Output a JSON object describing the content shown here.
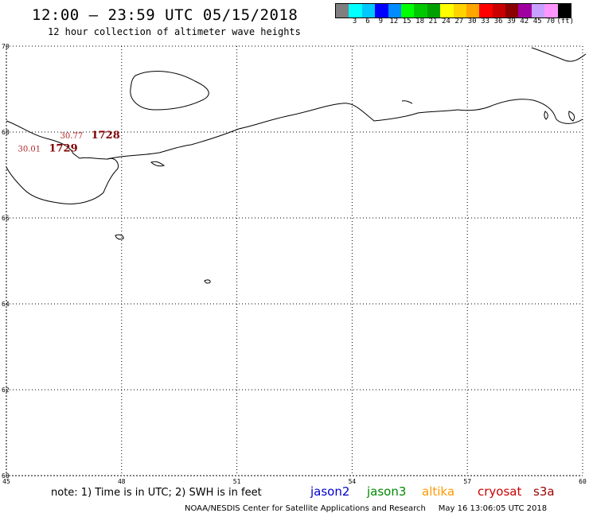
{
  "header": {
    "title": "12:00 – 23:59 UTC 05/15/2018",
    "subtitle": "12 hour collection of altimeter wave heights"
  },
  "legend": {
    "unit": "(ft)",
    "bins": [
      {
        "label": "",
        "color": "#7f7f7f"
      },
      {
        "label": "3",
        "color": "#00ffff"
      },
      {
        "label": "6",
        "color": "#00c8ff"
      },
      {
        "label": "9",
        "color": "#0000ff"
      },
      {
        "label": "12",
        "color": "#008cff"
      },
      {
        "label": "15",
        "color": "#00ff00"
      },
      {
        "label": "18",
        "color": "#00c800"
      },
      {
        "label": "21",
        "color": "#00a000"
      },
      {
        "label": "24",
        "color": "#ffff00"
      },
      {
        "label": "27",
        "color": "#ffd200"
      },
      {
        "label": "30",
        "color": "#ffa500"
      },
      {
        "label": "33",
        "color": "#ff0000"
      },
      {
        "label": "36",
        "color": "#c80000"
      },
      {
        "label": "39",
        "color": "#8b0000"
      },
      {
        "label": "42",
        "color": "#a000a0"
      },
      {
        "label": "45",
        "color": "#c8a0ff"
      },
      {
        "label": "70",
        "color": "#ff96ff"
      },
      {
        "label": "",
        "color": "#000000"
      }
    ]
  },
  "map": {
    "lon_range": [
      45,
      60
    ],
    "lat_range": [
      60,
      70
    ],
    "lon_ticks": [
      "45",
      "48",
      "51",
      "54",
      "57",
      "60"
    ],
    "lat_ticks": [
      "70",
      "68",
      "66",
      "64",
      "62",
      "60"
    ],
    "observations": [
      {
        "value": "30.01",
        "id": "1729",
        "lon": 45.3,
        "lat": 67.55
      },
      {
        "value": "30.77",
        "id": "1728",
        "lon": 46.4,
        "lat": 67.85
      }
    ]
  },
  "footer": {
    "note": "note: 1) Time is in UTC; 2) SWH is in feet",
    "satellites": [
      {
        "name": "jason2",
        "color": "#0000cc"
      },
      {
        "name": "jason3",
        "color": "#008800"
      },
      {
        "name": "altika",
        "color": "#ff9900"
      },
      {
        "name": "cryosat",
        "color": "#cc0000"
      },
      {
        "name": "s3a",
        "color": "#990000"
      }
    ],
    "credit": "NOAA/NESDIS Center for Satellite Applications and Research",
    "timestamp": "May 16 13:06:05 UTC 2018"
  }
}
